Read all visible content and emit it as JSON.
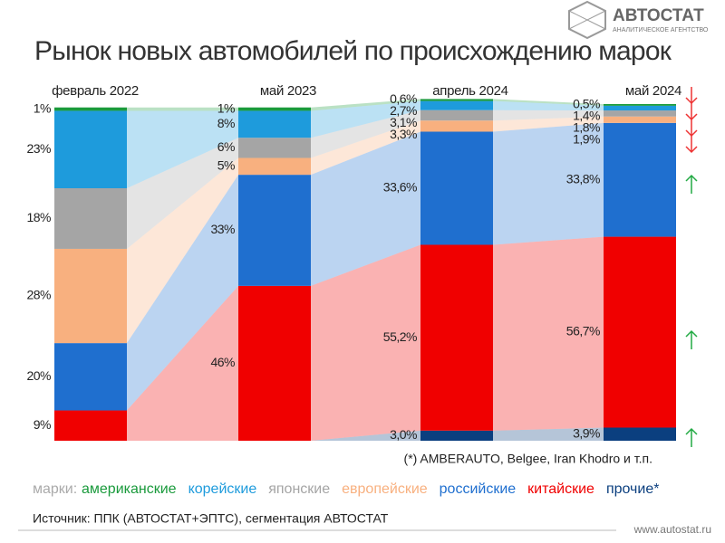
{
  "brand": {
    "name": "АВТОСТАТ",
    "tagline": "АНАЛИТИЧЕСКОЕ АГЕНТСТВО"
  },
  "chart_data": {
    "type": "stacked-flow-bar",
    "title": "Рынок новых автомобилей по происхождению марок",
    "categories": [
      "февраль 2022",
      "май 2023",
      "апрель 2024",
      "май 2024"
    ],
    "ylim": [
      0,
      100
    ],
    "legend_title": "марки:",
    "series": [
      {
        "name": "прочие*",
        "color": "#0b3f7f",
        "values": [
          0,
          0,
          3.0,
          3.9
        ],
        "value_labels": [
          null,
          null,
          "3,0%",
          "3,9%"
        ]
      },
      {
        "name": "китайские",
        "color": "#f00000",
        "values": [
          9,
          46,
          55.2,
          56.7
        ],
        "value_labels": [
          "9%",
          "46%",
          "55,2%",
          "56,7%"
        ]
      },
      {
        "name": "российские",
        "color": "#1f6fcf",
        "values": [
          20,
          33,
          33.6,
          33.8
        ],
        "value_labels": [
          "20%",
          "33%",
          "33,6%",
          "33,8%"
        ]
      },
      {
        "name": "европейские",
        "color": "#f8b07f",
        "values": [
          28,
          5,
          3.3,
          1.9
        ],
        "value_labels": [
          "28%",
          "5%",
          "3,3%",
          "1,9%"
        ]
      },
      {
        "name": "японские",
        "color": "#a5a5a5",
        "values": [
          18,
          6,
          3.1,
          1.8
        ],
        "value_labels": [
          "18%",
          "6%",
          "3,1%",
          "1,8%"
        ]
      },
      {
        "name": "корейские",
        "color": "#1e9bdc",
        "values": [
          23,
          8,
          2.7,
          1.4
        ],
        "value_labels": [
          "23%",
          "8%",
          "2,7%",
          "1,4%"
        ]
      },
      {
        "name": "американские",
        "color": "#1a9a3c",
        "values": [
          1,
          1,
          0.6,
          0.5
        ],
        "value_labels": [
          "1%",
          "1%",
          "0,6%",
          "0,5%"
        ]
      }
    ],
    "footnote": "(*) AMBERAUTO, Belgee, Iran Khodro и т.п.",
    "source": "Источник: ППК (АВТОСТАТ+ЭПТС), сегментация АВТОСТАТ"
  },
  "website": "www.autostat.ru"
}
